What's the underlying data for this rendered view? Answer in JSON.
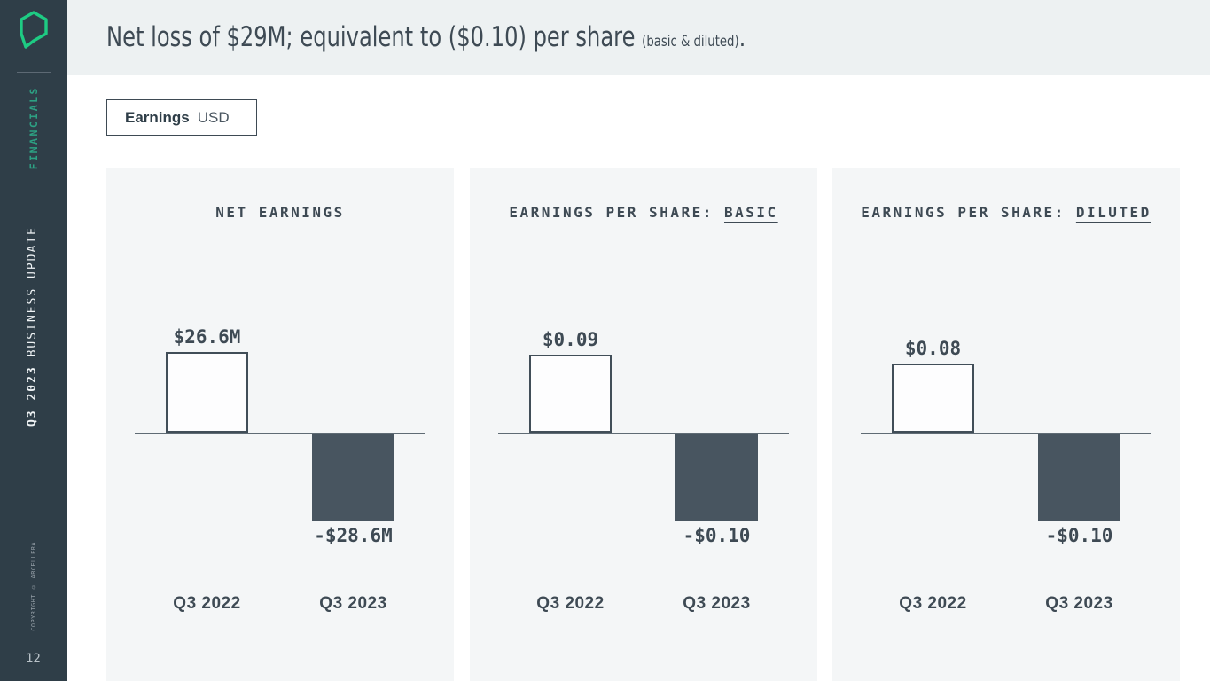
{
  "sidebar": {
    "section_label": "FINANCIALS",
    "deck_title_bold": "Q3 2023",
    "deck_title_rest": " BUSINESS UPDATE",
    "copyright": "COPYRIGHT © ABCELLERA",
    "page_number": "12"
  },
  "header": {
    "title_main": "Net loss of $29M; equivalent to ($0.10) per share ",
    "title_small": "(basic & diluted)",
    "title_period": "."
  },
  "toolbar": {
    "tab_bold": "Earnings",
    "tab_regular": "USD"
  },
  "colors": {
    "accent_green": "#1ecb83",
    "sidebar_green": "#2da183",
    "dark_slate": "#2f3e48",
    "bar_fill": "#485560",
    "text": "#3e4a54",
    "header_band": "#edf1f2",
    "panel_background": "#f4f6f7"
  },
  "chart_data": [
    {
      "type": "bar",
      "title": "NET EARNINGS",
      "title_emphasis": "",
      "categories": [
        "Q3 2022",
        "Q3 2023"
      ],
      "values": [
        26.6,
        -28.6
      ],
      "labels": [
        "$26.6M",
        "-$28.6M"
      ],
      "ylim": [
        -28.6,
        26.6
      ],
      "baseline": 0,
      "grid": false,
      "legend": false
    },
    {
      "type": "bar",
      "title": "EARNINGS PER SHARE: ",
      "title_emphasis": "BASIC",
      "categories": [
        "Q3 2022",
        "Q3 2023"
      ],
      "values": [
        0.09,
        -0.1
      ],
      "labels": [
        "$0.09",
        "-$0.10"
      ],
      "ylim": [
        -0.1,
        0.09
      ],
      "baseline": 0,
      "grid": false,
      "legend": false
    },
    {
      "type": "bar",
      "title": "EARNINGS PER SHARE: ",
      "title_emphasis": "DILUTED",
      "categories": [
        "Q3 2022",
        "Q3 2023"
      ],
      "values": [
        0.08,
        -0.1
      ],
      "labels": [
        "$0.08",
        "-$0.10"
      ],
      "ylim": [
        -0.1,
        0.08
      ],
      "baseline": 0,
      "grid": false,
      "legend": false
    }
  ]
}
